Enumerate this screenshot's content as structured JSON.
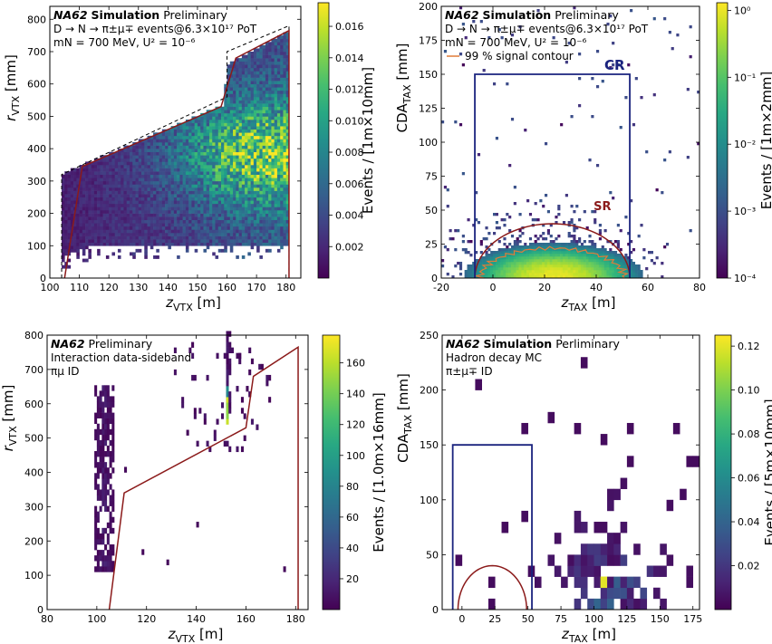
{
  "chart_data": [
    {
      "type": "heatmap",
      "annotation": {
        "experiment": "NA62",
        "tag": "Simulation",
        "status": "Preliminary",
        "lines": [
          "D → N → π±μ∓ events@6.3×10¹⁷ PoT",
          "mN = 700 MeV, U² = 10⁻⁶"
        ]
      },
      "xlabel": "zVTX [m]",
      "ylabel": "rVTX [mm]",
      "xlim": [
        100,
        185
      ],
      "ylim": [
        0,
        840
      ],
      "xticks": [
        100,
        110,
        120,
        130,
        140,
        150,
        160,
        170,
        180
      ],
      "yticks": [
        0,
        100,
        200,
        300,
        400,
        500,
        600,
        700,
        800
      ],
      "colorbar": {
        "label": "Events / [1m×10mm]",
        "scale": "linear",
        "min": 0,
        "max": 0.0175,
        "ticks": [
          0.002,
          0.004,
          0.006,
          0.008,
          0.01,
          0.012,
          0.014,
          0.016
        ],
        "tick_labels": [
          "0.002",
          "0.004",
          "0.006",
          "0.008",
          "0.010",
          "0.012",
          "0.014",
          "0.016"
        ]
      },
      "colors": {
        "signal_region": "#8b1a1a",
        "acceptance_dashed": "#000000"
      },
      "signal_region_polygon": [
        [
          105,
          0
        ],
        [
          111,
          345
        ],
        [
          158,
          530
        ],
        [
          163,
          680
        ],
        [
          181,
          765
        ],
        [
          181,
          0
        ]
      ],
      "acceptance_polygon": [
        [
          104,
          0
        ],
        [
          104,
          320
        ],
        [
          160,
          560
        ],
        [
          160,
          700
        ],
        [
          181,
          780
        ],
        [
          181,
          0
        ]
      ],
      "density_model": {
        "z_range": [
          104,
          181
        ],
        "r_min": [
          [
            104,
            60
          ],
          [
            115,
            100
          ],
          [
            180,
            100
          ]
        ],
        "r_max": [
          [
            104,
            320
          ],
          [
            158,
            530
          ],
          [
            160,
            660
          ],
          [
            181,
            765
          ]
        ],
        "peak": {
          "z": 172,
          "r": 380,
          "value": 0.011
        }
      }
    },
    {
      "type": "heatmap",
      "annotation": {
        "experiment": "NA62",
        "tag": "Simulation",
        "status": "Preliminary",
        "lines": [
          "D → N → π±μ∓ events@6.3×10¹⁷ PoT",
          "mN = 700 MeV, U² = 10⁻⁶",
          "99 % signal contour"
        ]
      },
      "xlabel": "zTAX [m]",
      "ylabel": "CDATAX [mm]",
      "xlim": [
        -20,
        80
      ],
      "ylim": [
        0,
        200
      ],
      "xticks": [
        -20,
        0,
        20,
        40,
        60,
        80
      ],
      "yticks": [
        0,
        25,
        50,
        75,
        100,
        125,
        150,
        175,
        200
      ],
      "colorbar": {
        "label": "Events / [1m×2mm]",
        "scale": "log",
        "min": 0.0001,
        "max": 1.3,
        "ticks": [
          0.0001,
          0.001,
          0.01,
          0.1,
          1
        ],
        "tick_labels": [
          "10⁻⁴",
          "10⁻³",
          "10⁻²",
          "10⁻¹",
          "10⁰"
        ]
      },
      "control_region": {
        "label": "CR",
        "x": [
          -7,
          53
        ],
        "y": [
          0,
          150
        ],
        "color": "#1a237e"
      },
      "signal_region": {
        "label": "SR",
        "center_x": 23,
        "radius_x": 30,
        "height": 40,
        "color": "#8b1a1a"
      },
      "contour_color": "#e07b39",
      "core": {
        "x": 23,
        "y": 0,
        "peak": 1.0
      }
    },
    {
      "type": "heatmap",
      "annotation": {
        "experiment": "NA62",
        "tag": "",
        "status": "Preliminary",
        "lines": [
          "Interaction data-sideband",
          "πμ ID"
        ]
      },
      "xlabel": "zVTX [m]",
      "ylabel": "rVTX [mm]",
      "xlim": [
        80,
        185
      ],
      "ylim": [
        0,
        800
      ],
      "xticks": [
        80,
        100,
        120,
        140,
        160,
        180
      ],
      "yticks": [
        0,
        100,
        200,
        300,
        400,
        500,
        600,
        700,
        800
      ],
      "colorbar": {
        "label": "Events / [1.0m×16mm]",
        "scale": "linear",
        "min": 0,
        "max": 178,
        "ticks": [
          20,
          40,
          60,
          80,
          100,
          120,
          140,
          160
        ],
        "tick_labels": [
          "20",
          "40",
          "60",
          "80",
          "100",
          "120",
          "140",
          "160"
        ]
      },
      "signal_region_polygon": [
        [
          105,
          0
        ],
        [
          111,
          340
        ],
        [
          160,
          530
        ],
        [
          163,
          680
        ],
        [
          181,
          765
        ],
        [
          181,
          0
        ]
      ],
      "cluster": {
        "z": [
          99,
          106
        ],
        "r": [
          110,
          650
        ]
      },
      "hot_column": {
        "z": 152,
        "r": [
          540,
          800
        ],
        "peak": 170
      }
    },
    {
      "type": "heatmap",
      "annotation": {
        "experiment": "NA62",
        "tag": "Simulation",
        "status": "Perliminary",
        "lines": [
          "Hadron decay MC",
          "π±μ∓ ID"
        ]
      },
      "xlabel": "zTAX [m]",
      "ylabel": "CDATAX [mm]",
      "xlim": [
        -15,
        180
      ],
      "ylim": [
        0,
        250
      ],
      "xticks": [
        0,
        25,
        50,
        75,
        100,
        125,
        150,
        175
      ],
      "yticks": [
        0,
        50,
        100,
        150,
        200,
        250
      ],
      "colorbar": {
        "label": "Events / [5m×10mm]",
        "scale": "linear",
        "min": 0,
        "max": 0.125,
        "ticks": [
          0.02,
          0.04,
          0.06,
          0.08,
          0.1,
          0.12
        ],
        "tick_labels": [
          "0.02",
          "0.04",
          "0.06",
          "0.08",
          "0.10",
          "0.12"
        ]
      },
      "control_region": {
        "x": [
          -7,
          53
        ],
        "y": [
          0,
          150
        ],
        "color": "#1a237e"
      },
      "signal_region": {
        "center_x": 23,
        "radius_x": 26,
        "height": 40,
        "color": "#8b1a1a"
      },
      "peak": {
        "x": 107,
        "y": 25,
        "value": 0.12
      }
    }
  ]
}
